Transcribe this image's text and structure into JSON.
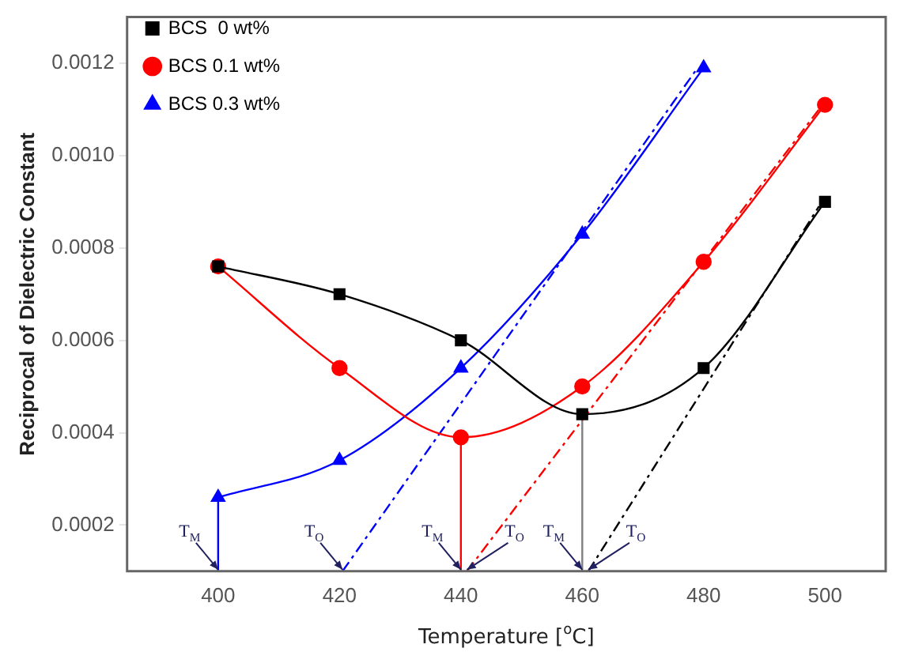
{
  "chart_data": {
    "type": "line",
    "xlabel": "Temperature [$^{o}$C]",
    "ylabel": "Reciprocal of Dielectric Constant",
    "xlim": [
      385,
      510
    ],
    "xticks": [
      400,
      420,
      440,
      460,
      480,
      500
    ],
    "ylim": [
      0.0001,
      0.0013
    ],
    "yticks": [
      0.0002,
      0.0004,
      0.0006,
      0.0008,
      {
        "value": 0.001,
        "label": "0.0010"
      },
      0.0012
    ],
    "grid": false,
    "legend": "top left",
    "series": [
      {
        "name": "BCS  0 wt%",
        "color": "#000000",
        "marker": "square",
        "line_style": "solid",
        "x": [
          400,
          420,
          440,
          460,
          480,
          500
        ],
        "values": [
          0.00076,
          0.0007,
          0.0006,
          0.00044,
          0.00054,
          0.0009
        ]
      },
      {
        "name": "BCS 0.1 wt%",
        "color": "#ff0000",
        "marker": "circle",
        "line_style": "solid",
        "x": [
          400,
          420,
          440,
          460,
          480,
          500
        ],
        "values": [
          0.00076,
          0.00054,
          0.00039,
          0.0005,
          0.00077,
          0.00111
        ]
      },
      {
        "name": "BCS 0.3 wt%",
        "color": "#0000ff",
        "marker": "triangle",
        "line_style": "solid",
        "x": [
          400,
          420,
          440,
          460,
          480
        ],
        "values": [
          0.00026,
          0.00034,
          0.00054,
          0.00083,
          0.00119
        ]
      },
      {
        "color": "#0000ff",
        "marker": "none",
        "line_style": "dashed",
        "x": [
          420.5,
          479
        ],
        "values": [
          0.0001,
          0.00119
        ]
      },
      {
        "color": "#ff0000",
        "marker": "none",
        "line_style": "dashed",
        "x": [
          441,
          499
        ],
        "values": [
          0.0001,
          0.0011
        ]
      },
      {
        "color": "#000000",
        "marker": "none",
        "line_style": "dashed",
        "x": [
          461,
          499
        ],
        "values": [
          0.0001,
          0.00089
        ]
      },
      {
        "color": "#0000ff",
        "marker": "none",
        "line_style": "solid",
        "x": [
          400,
          400
        ],
        "values": [
          0.0001,
          0.00026
        ]
      },
      {
        "color": "#ff0000",
        "marker": "none",
        "line_style": "solid",
        "x": [
          440,
          440
        ],
        "values": [
          0.0001,
          0.00039
        ]
      },
      {
        "color": "#808080",
        "marker": "none",
        "line_style": "solid",
        "x": [
          460,
          460
        ],
        "values": [
          0.0001,
          0.00044
        ]
      }
    ],
    "annotations": [
      {
        "text": "T$_{M}$",
        "x": 400,
        "y": 0.0001
      },
      {
        "text": "T$_{O}$",
        "x": 420.5,
        "y": 0.0001
      },
      {
        "text": "T$_{M}$",
        "x": 440,
        "y": 0.0001
      },
      {
        "text": "T$_{O}$",
        "x": 441,
        "y": 0.0001
      },
      {
        "text": "T$_{M}$",
        "x": 460,
        "y": 0.0001
      },
      {
        "text": "T$_{O}$",
        "x": 461,
        "y": 0.0001
      }
    ]
  }
}
